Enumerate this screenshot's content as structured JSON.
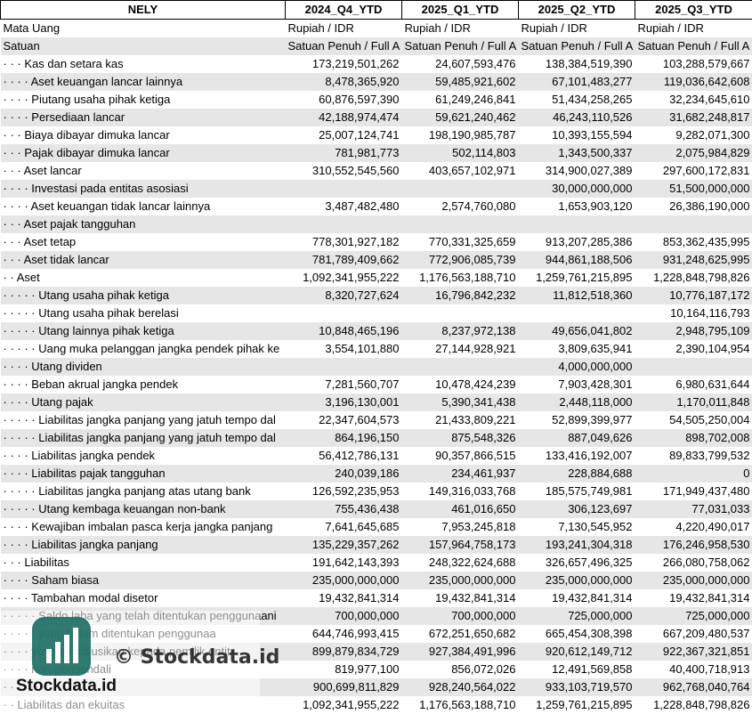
{
  "header": {
    "entity": "NELY",
    "columns": [
      "2024_Q4_YTD",
      "2025_Q1_YTD",
      "2025_Q2_YTD",
      "2025_Q3_YTD"
    ]
  },
  "meta_rows": [
    {
      "label": "Mata Uang",
      "values": [
        "Rupiah / IDR",
        "Rupiah / IDR",
        "Rupiah / IDR",
        "Rupiah / IDR"
      ]
    },
    {
      "label": "Satuan",
      "values": [
        "Satuan Penuh / Full A",
        "Satuan Penuh / Full A",
        "Satuan Penuh / Full A",
        "Satuan Penuh / Full A"
      ]
    }
  ],
  "rows": [
    {
      "dots": "· · ·",
      "label": "Kas dan setara kas",
      "values": [
        "173,219,501,262",
        "24,607,593,476",
        "138,384,519,390",
        "103,288,579,667"
      ]
    },
    {
      "dots": "· · · ·",
      "label": "Aset keuangan lancar lainnya",
      "values": [
        "8,478,365,920",
        "59,485,921,602",
        "67,101,483,277",
        "119,036,642,608"
      ]
    },
    {
      "dots": "· · · ·",
      "label": "Piutang usaha pihak ketiga",
      "values": [
        "60,876,597,390",
        "61,249,246,841",
        "51,434,258,265",
        "32,234,645,610"
      ]
    },
    {
      "dots": "· · · ·",
      "label": "Persediaan lancar",
      "values": [
        "42,188,974,474",
        "59,621,240,462",
        "46,243,110,526",
        "31,682,248,817"
      ]
    },
    {
      "dots": "· · ·",
      "label": "Biaya dibayar dimuka lancar",
      "values": [
        "25,007,124,741",
        "198,190,985,787",
        "10,393,155,594",
        "9,282,071,300"
      ]
    },
    {
      "dots": "· · ·",
      "label": "Pajak dibayar dimuka lancar",
      "values": [
        "781,981,773",
        "502,114,803",
        "1,343,500,337",
        "2,075,984,829"
      ]
    },
    {
      "dots": "· · ·",
      "label": "Aset lancar",
      "values": [
        "310,552,545,560",
        "403,657,102,971",
        "314,900,027,389",
        "297,600,172,831"
      ]
    },
    {
      "dots": "· · · ·",
      "label": "Investasi pada entitas asosiasi",
      "values": [
        "",
        "",
        "30,000,000,000",
        "51,500,000,000"
      ]
    },
    {
      "dots": "· · · ·",
      "label": "Aset keuangan tidak lancar lainnya",
      "values": [
        "3,487,482,480",
        "2,574,760,080",
        "1,653,903,120",
        "26,386,190,000"
      ]
    },
    {
      "dots": "· · ·",
      "label": "Aset pajak tangguhan",
      "values": [
        "",
        "",
        "",
        ""
      ]
    },
    {
      "dots": "· · ·",
      "label": "Aset tetap",
      "values": [
        "778,301,927,182",
        "770,331,325,659",
        "913,207,285,386",
        "853,362,435,995"
      ]
    },
    {
      "dots": "· · ·",
      "label": "Aset tidak lancar",
      "values": [
        "781,789,409,662",
        "772,906,085,739",
        "944,861,188,506",
        "931,248,625,995"
      ]
    },
    {
      "dots": "· ·",
      "label": "Aset",
      "values": [
        "1,092,341,955,222",
        "1,176,563,188,710",
        "1,259,761,215,895",
        "1,228,848,798,826"
      ]
    },
    {
      "dots": "· · · · ·",
      "label": "Utang usaha pihak ketiga",
      "values": [
        "8,320,727,624",
        "16,796,842,232",
        "11,812,518,360",
        "10,776,187,172"
      ]
    },
    {
      "dots": "· · · · ·",
      "label": "Utang usaha pihak berelasi",
      "values": [
        "",
        "",
        "",
        "10,164,116,793"
      ]
    },
    {
      "dots": "· · · · ·",
      "label": "Utang lainnya pihak ketiga",
      "values": [
        "10,848,465,196",
        "8,237,972,138",
        "49,656,041,802",
        "2,948,795,109"
      ]
    },
    {
      "dots": "· · · · ·",
      "label": "Uang muka pelanggan jangka pendek pihak ke",
      "values": [
        "3,554,101,880",
        "27,144,928,921",
        "3,809,635,941",
        "2,390,104,954"
      ]
    },
    {
      "dots": "· · · ·",
      "label": "Utang dividen",
      "values": [
        "",
        "",
        "4,000,000,000",
        ""
      ]
    },
    {
      "dots": "· · · ·",
      "label": "Beban akrual jangka pendek",
      "values": [
        "7,281,560,707",
        "10,478,424,239",
        "7,903,428,301",
        "6,980,631,644"
      ]
    },
    {
      "dots": "· · · ·",
      "label": "Utang pajak",
      "values": [
        "3,196,130,001",
        "5,390,341,438",
        "2,448,118,000",
        "1,170,011,848"
      ]
    },
    {
      "dots": "· · · · ·",
      "label": "Liabilitas jangka panjang yang jatuh tempo dal",
      "values": [
        "22,347,604,573",
        "21,433,809,221",
        "52,899,399,977",
        "54,505,250,004"
      ]
    },
    {
      "dots": "· · · · ·",
      "label": "Liabilitas jangka panjang yang jatuh tempo dal",
      "values": [
        "864,196,150",
        "875,548,326",
        "887,049,626",
        "898,702,008"
      ]
    },
    {
      "dots": "· · · ·",
      "label": "Liabilitas jangka pendek",
      "values": [
        "56,412,786,131",
        "90,357,866,515",
        "133,416,192,007",
        "89,833,799,532"
      ]
    },
    {
      "dots": "· · · ·",
      "label": "Liabilitas pajak tangguhan",
      "values": [
        "240,039,186",
        "234,461,937",
        "228,884,688",
        "0"
      ]
    },
    {
      "dots": "· · · · ·",
      "label": "Liabilitas jangka panjang atas utang bank",
      "values": [
        "126,592,235,953",
        "149,316,033,768",
        "185,575,749,981",
        "171,949,437,480"
      ]
    },
    {
      "dots": "· · · · ·",
      "label": "Utang kembaga keuangan non-bank",
      "values": [
        "755,436,438",
        "461,016,650",
        "306,123,697",
        "77,031,033"
      ]
    },
    {
      "dots": "· · · ·",
      "label": "Kewajiban imbalan pasca kerja jangka panjang",
      "values": [
        "7,641,645,685",
        "7,953,245,818",
        "7,130,545,952",
        "4,220,490,017"
      ]
    },
    {
      "dots": "· · · ·",
      "label": "Liabilitas jangka panjang",
      "values": [
        "135,229,357,262",
        "157,964,758,173",
        "193,241,304,318",
        "176,246,958,530"
      ]
    },
    {
      "dots": "· · ·",
      "label": "Liabilitas",
      "values": [
        "191,642,143,393",
        "248,322,624,688",
        "326,657,496,325",
        "266,080,758,062"
      ]
    },
    {
      "dots": "· · · ·",
      "label": "Saham biasa",
      "values": [
        "235,000,000,000",
        "235,000,000,000",
        "235,000,000,000",
        "235,000,000,000"
      ]
    },
    {
      "dots": "· · · ·",
      "label": "Tambahan modal disetor",
      "values": [
        "19,432,841,314",
        "19,432,841,314",
        "19,432,841,314",
        "19,432,841,314"
      ]
    },
    {
      "dots": "· · · · ·",
      "label": "Saldo laba yang telah ditentukan penggunaani",
      "values": [
        "700,000,000",
        "700,000,000",
        "725,000,000",
        "725,000,000"
      ]
    },
    {
      "dots": "· · · · ·",
      "label": "yang belum ditentukan penggunaa",
      "values": [
        "644,746,993,415",
        "672,251,650,682",
        "665,454,308,398",
        "667,209,480,537"
      ]
    },
    {
      "dots": "· · · ·",
      "label": "yang diatribusikan kepada pemilik entit",
      "values": [
        "899,879,834,729",
        "927,384,491,996",
        "920,612,149,712",
        "922,367,321,851"
      ]
    },
    {
      "dots": "· · · ·",
      "label": "non-pengendali",
      "values": [
        "819,977,100",
        "856,072,026",
        "12,491,569,858",
        "40,400,718,913"
      ]
    },
    {
      "dots": "· · ·",
      "label": "",
      "values": [
        "900,699,811,829",
        "928,240,564,022",
        "933,103,719,570",
        "962,768,040,764"
      ]
    },
    {
      "dots": "· ·",
      "label": "Liabilitas dan ekuitas",
      "values": [
        "1,092,341,955,222",
        "1,176,563,188,710",
        "1,259,761,215,895",
        "1,228,848,798,826"
      ]
    }
  ],
  "watermark": {
    "center_text": "© Stockdata.id",
    "brand_text": "Stockdata.id",
    "logo_icon": "bar-chart-logo-icon",
    "logo_color": "#1f6f66"
  },
  "colors": {
    "row_gray": "#e6e6e6",
    "row_white": "#ffffff"
  }
}
